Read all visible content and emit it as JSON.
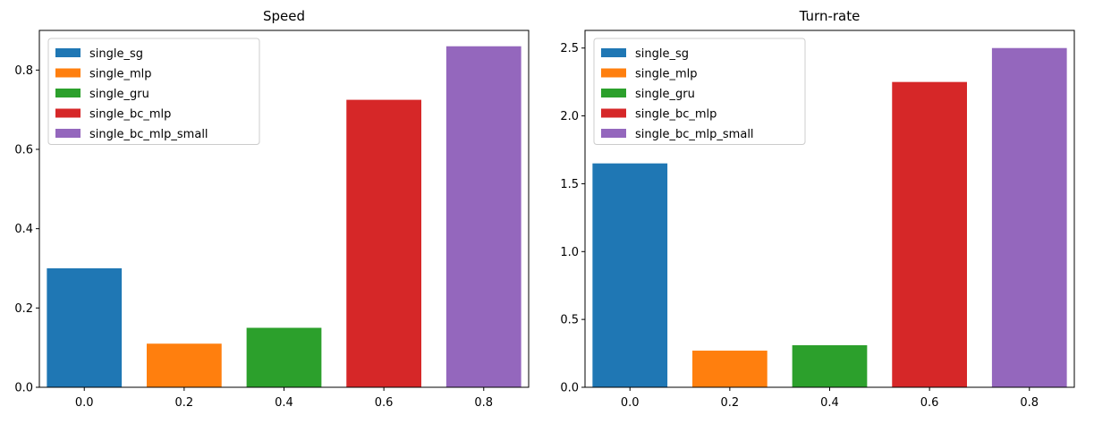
{
  "chart_data": [
    {
      "type": "bar",
      "title": "Speed",
      "xlabel": "",
      "ylabel": "",
      "x": [
        0.0,
        0.2,
        0.4,
        0.6,
        0.8
      ],
      "bar_width": 0.15,
      "xlim": [
        -0.09,
        0.89
      ],
      "ylim": [
        0.0,
        0.9
      ],
      "xticks": [
        0.0,
        0.2,
        0.4,
        0.6,
        0.8
      ],
      "xtick_labels": [
        "0.0",
        "0.2",
        "0.4",
        "0.6",
        "0.8"
      ],
      "yticks": [
        0.0,
        0.2,
        0.4,
        0.6,
        0.8
      ],
      "ytick_labels": [
        "0.0",
        "0.2",
        "0.4",
        "0.6",
        "0.8"
      ],
      "grid": false,
      "legend_position": "upper-left",
      "series": [
        {
          "name": "single_sg",
          "x": 0.0,
          "value": 0.3,
          "color": "#1f77b4"
        },
        {
          "name": "single_mlp",
          "x": 0.2,
          "value": 0.11,
          "color": "#ff7f0e"
        },
        {
          "name": "single_gru",
          "x": 0.4,
          "value": 0.15,
          "color": "#2ca02c"
        },
        {
          "name": "single_bc_mlp",
          "x": 0.6,
          "value": 0.725,
          "color": "#d62728"
        },
        {
          "name": "single_bc_mlp_small",
          "x": 0.8,
          "value": 0.86,
          "color": "#9467bd"
        }
      ]
    },
    {
      "type": "bar",
      "title": "Turn-rate",
      "xlabel": "",
      "ylabel": "",
      "x": [
        0.0,
        0.2,
        0.4,
        0.6,
        0.8
      ],
      "bar_width": 0.15,
      "xlim": [
        -0.09,
        0.89
      ],
      "ylim": [
        0.0,
        2.63
      ],
      "xticks": [
        0.0,
        0.2,
        0.4,
        0.6,
        0.8
      ],
      "xtick_labels": [
        "0.0",
        "0.2",
        "0.4",
        "0.6",
        "0.8"
      ],
      "yticks": [
        0.0,
        0.5,
        1.0,
        1.5,
        2.0,
        2.5
      ],
      "ytick_labels": [
        "0.0",
        "0.5",
        "1.0",
        "1.5",
        "2.0",
        "2.5"
      ],
      "grid": false,
      "legend_position": "upper-left",
      "series": [
        {
          "name": "single_sg",
          "x": 0.0,
          "value": 1.65,
          "color": "#1f77b4"
        },
        {
          "name": "single_mlp",
          "x": 0.2,
          "value": 0.27,
          "color": "#ff7f0e"
        },
        {
          "name": "single_gru",
          "x": 0.4,
          "value": 0.31,
          "color": "#2ca02c"
        },
        {
          "name": "single_bc_mlp",
          "x": 0.6,
          "value": 2.25,
          "color": "#d62728"
        },
        {
          "name": "single_bc_mlp_small",
          "x": 0.8,
          "value": 2.5,
          "color": "#9467bd"
        }
      ]
    }
  ]
}
